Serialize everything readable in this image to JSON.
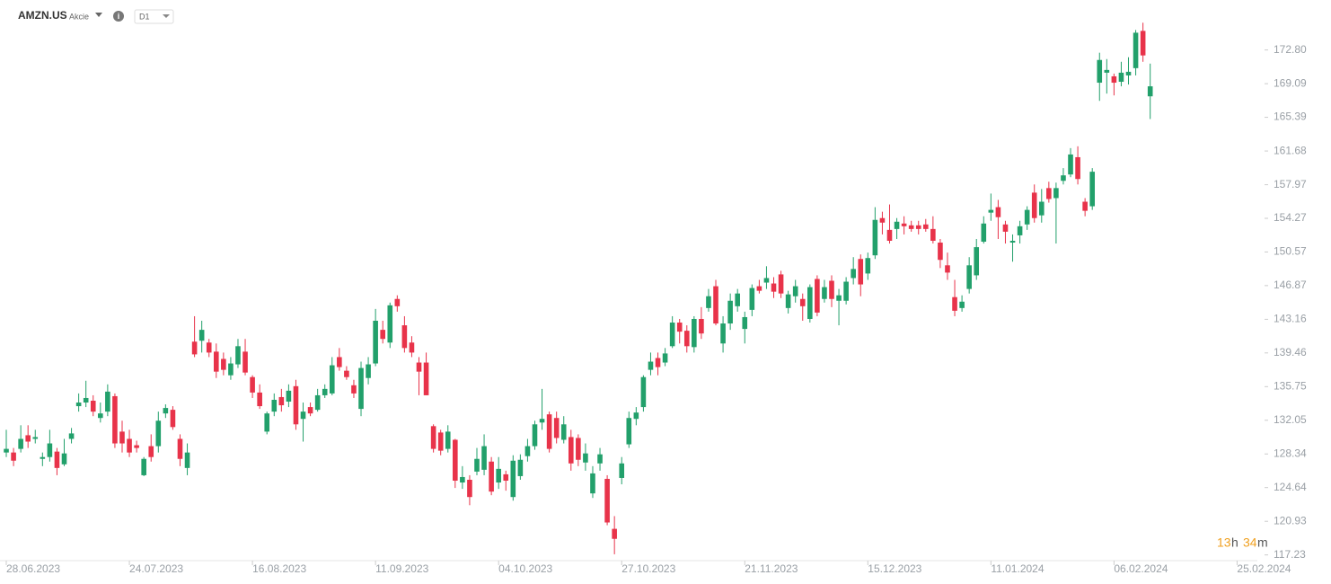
{
  "header": {
    "symbol": "AMZN.US",
    "kind": "Akcie",
    "interval": "D1"
  },
  "countdown": {
    "hours": 13,
    "hours_unit": "h",
    "minutes": 34,
    "minutes_unit": "m"
  },
  "chart_data": {
    "type": "candlestick",
    "up_color": "#22a06b",
    "down_color": "#e8334a",
    "open": [
      128.5,
      128.5,
      128.9,
      130.4,
      130,
      127.8,
      128,
      128.6,
      127.2,
      130,
      133.6,
      134,
      134.2,
      132.3,
      133,
      134.7,
      130.8,
      130,
      129.3,
      126,
      129.2,
      129.2,
      132.8,
      133.2,
      130,
      126.8,
      140.7,
      140.8,
      140.6,
      139.6,
      138.8,
      137,
      138.2,
      139.6,
      136.8,
      135.1,
      130.8,
      133,
      134.6,
      134.1,
      135.8,
      132.2,
      133.5,
      133.2,
      134.8,
      135,
      139,
      137.5,
      135.9,
      133.3,
      136.7,
      138.3,
      142,
      140.6,
      145.4,
      142.5,
      140.6,
      138.4,
      138.4,
      131.4,
      130.7,
      128.9,
      129.9,
      125.2,
      125.5,
      126.4,
      126.6,
      127.5,
      125.2,
      126.1,
      123.6,
      125.9,
      128.1,
      129.2,
      131.8,
      132.7,
      132.3,
      129.9,
      130.2,
      130.1,
      127.4,
      124,
      127.3,
      125.6,
      120.1,
      125.7,
      129.4,
      132.2,
      133.5,
      137.6,
      138.9,
      138.4,
      140.2,
      142.8,
      141.9,
      140.1,
      143.2,
      144.4,
      146.8,
      140.5,
      142.7,
      144.6,
      142.1,
      144.2,
      146.8,
      147.2,
      147.1,
      148.1,
      144.4,
      145.7,
      145.4,
      143.2,
      147.6,
      145.4,
      147.4,
      145.2,
      145.2,
      147.7,
      149.8,
      148.2,
      150.2,
      154.3,
      153,
      153.1,
      153.7,
      153.5,
      153.5,
      153.6,
      153.1,
      151.6,
      149.1,
      145.6,
      144.4,
      146.5,
      148,
      151.7,
      154.9,
      155.5,
      153.6,
      151.6,
      152.4,
      153.6,
      157.1,
      154.6,
      157.6,
      156.5,
      158.4,
      159.1,
      161,
      156.1,
      155.6,
      169.2,
      170.3,
      169.9,
      169.3,
      170,
      170.8,
      174.9,
      167.7
    ],
    "high": [
      131,
      129,
      131.5,
      131.5,
      131,
      128.5,
      131,
      129,
      130,
      131.2,
      135,
      136.4,
      134.8,
      134,
      136,
      135,
      132,
      131,
      129.8,
      128,
      130.5,
      133,
      133.8,
      133.6,
      130.5,
      129.5,
      143.5,
      143,
      141,
      140.5,
      139.5,
      139,
      141,
      141,
      137,
      136,
      133,
      135,
      135.5,
      136,
      136.5,
      134,
      134,
      135.5,
      136,
      139,
      140,
      138,
      136.5,
      138.5,
      139,
      144.3,
      143,
      145,
      145.8,
      143.5,
      141.3,
      139,
      139.5,
      131.6,
      131,
      131.5,
      130,
      127,
      126,
      129,
      130.5,
      128,
      128,
      126.5,
      128.2,
      128.3,
      130,
      132,
      135.5,
      133,
      133,
      132.5,
      131,
      130.5,
      129.5,
      127,
      129,
      126,
      121.5,
      128,
      133,
      133.5,
      137,
      139.5,
      139.5,
      140,
      143.5,
      143.2,
      142.5,
      143.5,
      144.5,
      146.5,
      147.5,
      143.5,
      146,
      146.5,
      144,
      147,
      147.5,
      149,
      147.8,
      148.5,
      146.3,
      147.5,
      146,
      147,
      148,
      147.5,
      148,
      146.5,
      147.8,
      150,
      150.3,
      150.5,
      155.5,
      155,
      155.8,
      154.3,
      154.5,
      154,
      154,
      154.2,
      154.5,
      152,
      150.5,
      147.5,
      145.8,
      150,
      152,
      154.5,
      157,
      156.3,
      154,
      152.5,
      154,
      155.6,
      158,
      157.5,
      158.3,
      158.2,
      159.8,
      162,
      162.2,
      156.5,
      159.8,
      172.5,
      171.8,
      170.2,
      171.5,
      172,
      175,
      175.8,
      171.3
    ],
    "low": [
      128,
      127,
      128.5,
      129,
      129.5,
      127,
      127.5,
      126,
      127,
      129.5,
      133,
      133.5,
      132.5,
      131.8,
      132.5,
      129,
      128.5,
      128,
      128.5,
      125.9,
      127.5,
      128.5,
      132.3,
      131,
      127,
      126,
      139,
      139.5,
      139,
      136.7,
      137,
      136.5,
      137.8,
      137,
      134.5,
      133.3,
      130.5,
      132.5,
      133,
      133.5,
      131,
      129.7,
      132.5,
      133,
      134.5,
      134.8,
      137.5,
      136.5,
      134.5,
      132.5,
      136,
      138,
      140.5,
      140,
      144,
      139.5,
      139,
      134.8,
      134.8,
      128.5,
      128.2,
      128.5,
      124.6,
      124.5,
      122.7,
      126,
      126,
      123.8,
      124.5,
      124.3,
      123.2,
      125.5,
      127.5,
      128.8,
      131,
      128.5,
      129.5,
      129.5,
      126.5,
      127,
      126.5,
      123.5,
      126.5,
      120.5,
      117.3,
      125,
      129,
      131.5,
      133,
      137,
      137,
      138,
      140,
      140.5,
      139.5,
      139.5,
      141,
      144,
      142.5,
      139.5,
      142,
      144,
      140.5,
      143.5,
      146,
      146.5,
      145.5,
      145.5,
      143.8,
      145,
      143,
      142.8,
      143.5,
      145,
      144.5,
      142.5,
      144.8,
      147,
      145.7,
      147.5,
      149.8,
      152.5,
      151.5,
      152,
      152.5,
      152.8,
      152.5,
      152.8,
      151.5,
      148.8,
      147.5,
      143.5,
      144,
      146,
      147.5,
      151.5,
      154,
      152,
      151.5,
      149.5,
      151.5,
      153,
      153.8,
      153.8,
      156,
      151.5,
      158,
      158.8,
      158,
      154.5,
      155.2,
      167.2,
      168,
      167.8,
      168.8,
      169,
      170,
      171.5,
      165.2
    ],
    "close": [
      128.9,
      127.6,
      130,
      129.7,
      130.2,
      128,
      129.5,
      126.8,
      128.4,
      130.6,
      134,
      134.5,
      133,
      132.8,
      135.2,
      129.5,
      129.5,
      128.5,
      129,
      127.8,
      128,
      132,
      133.4,
      131.3,
      127.8,
      128.5,
      139.3,
      142,
      139.5,
      137.4,
      137.6,
      138.3,
      140.2,
      137.3,
      135.1,
      133.6,
      132.8,
      134.3,
      133.7,
      135.3,
      131.6,
      133,
      132.8,
      134.8,
      135.5,
      138.1,
      137.9,
      136.8,
      135,
      137.8,
      138.2,
      143,
      141,
      144.7,
      144.6,
      140,
      139.5,
      137.4,
      134.8,
      128.9,
      128.7,
      130.8,
      125.4,
      125.8,
      123.6,
      127.8,
      129.2,
      124.2,
      126.7,
      125.4,
      127.6,
      127.7,
      129.2,
      131.6,
      132.2,
      128.9,
      130.1,
      131.6,
      127.3,
      127.7,
      128.4,
      126.2,
      128.3,
      120.8,
      119,
      127.3,
      132.3,
      132.9,
      136.8,
      138.5,
      137.9,
      139.4,
      142.8,
      141.8,
      140.2,
      143.2,
      141.6,
      145.7,
      142.7,
      142.7,
      145.2,
      146,
      143.4,
      146.6,
      146.3,
      147.7,
      146.2,
      146,
      145.9,
      146.8,
      144.6,
      146.7,
      143.9,
      146.7,
      145.4,
      145.8,
      147.3,
      148.7,
      147,
      149.9,
      154.1,
      153.8,
      151.8,
      153.9,
      153.4,
      153.1,
      153.1,
      153.1,
      151.8,
      149.7,
      148.3,
      144.1,
      145.1,
      149.1,
      151.1,
      153.7,
      155.2,
      154.4,
      152.8,
      151.8,
      153.4,
      155.2,
      154.3,
      156.1,
      156.4,
      157.6,
      159,
      161.3,
      158.6,
      155.1,
      159.4,
      171.7,
      170.6,
      169.2,
      170.3,
      170.4,
      174.7,
      172.2,
      168.8
    ],
    "ylim": [
      116.6,
      178.3
    ],
    "yticks": [
      117.23,
      120.93,
      124.64,
      128.34,
      132.05,
      135.75,
      139.46,
      143.16,
      146.87,
      150.57,
      154.27,
      157.97,
      161.68,
      165.39,
      169.09,
      {
        "value": 172.8,
        "label": "172.80"
      }
    ],
    "xlim": [
      -0.87,
      172.8
    ],
    "xticks": [
      {
        "value": 0,
        "label": "28.06.2023"
      },
      {
        "value": 17,
        "label": "24.07.2023"
      },
      {
        "value": 34,
        "label": "16.08.2023"
      },
      {
        "value": 51,
        "label": "11.09.2023"
      },
      {
        "value": 68,
        "label": "04.10.2023"
      },
      {
        "value": 85,
        "label": "27.10.2023"
      },
      {
        "value": 102,
        "label": "21.11.2023"
      },
      {
        "value": 119,
        "label": "15.12.2023"
      },
      {
        "value": 136,
        "label": "11.01.2024"
      },
      {
        "value": 153,
        "label": "06.02.2024"
      },
      {
        "value": 170,
        "label": "25.02.2024"
      }
    ]
  }
}
